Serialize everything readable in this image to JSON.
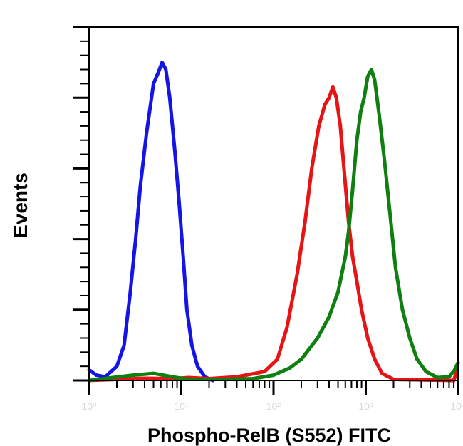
{
  "chart_data": {
    "type": "line",
    "title": "",
    "xlabel": "Phospho-RelB (S552) FITC",
    "ylabel": "Events",
    "x_scale": "log",
    "xlim": [
      1,
      10000
    ],
    "ylim": [
      0,
      100
    ],
    "x_tick_labels": [
      "10⁰",
      "10¹",
      "10²",
      "10³",
      "10⁴"
    ],
    "grid": false,
    "legend": "none",
    "series": [
      {
        "color": "#1414e6",
        "points": [
          [
            1,
            3
          ],
          [
            1.2,
            1.5
          ],
          [
            1.5,
            1
          ],
          [
            2,
            4
          ],
          [
            2.4,
            10
          ],
          [
            2.8,
            25
          ],
          [
            3.2,
            40
          ],
          [
            3.6,
            55
          ],
          [
            4.2,
            70
          ],
          [
            5,
            84
          ],
          [
            5.6,
            87
          ],
          [
            6.2,
            90
          ],
          [
            6.8,
            88
          ],
          [
            7.5,
            80
          ],
          [
            8.5,
            65
          ],
          [
            9.5,
            50
          ],
          [
            10.5,
            35
          ],
          [
            11.5,
            20
          ],
          [
            13,
            10
          ],
          [
            15,
            4
          ],
          [
            18,
            1
          ],
          [
            22,
            0
          ]
        ]
      },
      {
        "color": "#e61414",
        "points": [
          [
            1,
            0
          ],
          [
            4,
            0.6
          ],
          [
            8,
            0.5
          ],
          [
            12,
            0.8
          ],
          [
            20,
            0.5
          ],
          [
            40,
            1
          ],
          [
            80,
            2.5
          ],
          [
            110,
            6
          ],
          [
            140,
            15
          ],
          [
            180,
            30
          ],
          [
            220,
            45
          ],
          [
            260,
            60
          ],
          [
            310,
            72
          ],
          [
            360,
            78
          ],
          [
            400,
            80
          ],
          [
            440,
            83
          ],
          [
            480,
            80
          ],
          [
            530,
            72
          ],
          [
            580,
            60
          ],
          [
            650,
            45
          ],
          [
            720,
            35
          ],
          [
            800,
            28
          ],
          [
            900,
            20
          ],
          [
            1050,
            12
          ],
          [
            1250,
            6
          ],
          [
            1500,
            2
          ],
          [
            2000,
            0.3
          ],
          [
            9000,
            0
          ],
          [
            9500,
            2
          ],
          [
            10000,
            5
          ]
        ]
      },
      {
        "color": "#0f7f0f",
        "points": [
          [
            1,
            0
          ],
          [
            3,
            1.5
          ],
          [
            5,
            2
          ],
          [
            8,
            1
          ],
          [
            12,
            0.3
          ],
          [
            30,
            0.3
          ],
          [
            60,
            0.5
          ],
          [
            100,
            1.5
          ],
          [
            150,
            3.5
          ],
          [
            200,
            6
          ],
          [
            300,
            12
          ],
          [
            400,
            18
          ],
          [
            500,
            25
          ],
          [
            600,
            35
          ],
          [
            650,
            42
          ],
          [
            720,
            54
          ],
          [
            800,
            68
          ],
          [
            880,
            76
          ],
          [
            960,
            80
          ],
          [
            1050,
            86
          ],
          [
            1150,
            88
          ],
          [
            1250,
            85
          ],
          [
            1400,
            75
          ],
          [
            1600,
            62
          ],
          [
            1850,
            46
          ],
          [
            2100,
            32
          ],
          [
            2500,
            20
          ],
          [
            3000,
            12
          ],
          [
            3600,
            6
          ],
          [
            4500,
            2.5
          ],
          [
            6000,
            0.8
          ],
          [
            8000,
            1
          ],
          [
            9200,
            3
          ],
          [
            10000,
            5
          ]
        ]
      }
    ]
  }
}
